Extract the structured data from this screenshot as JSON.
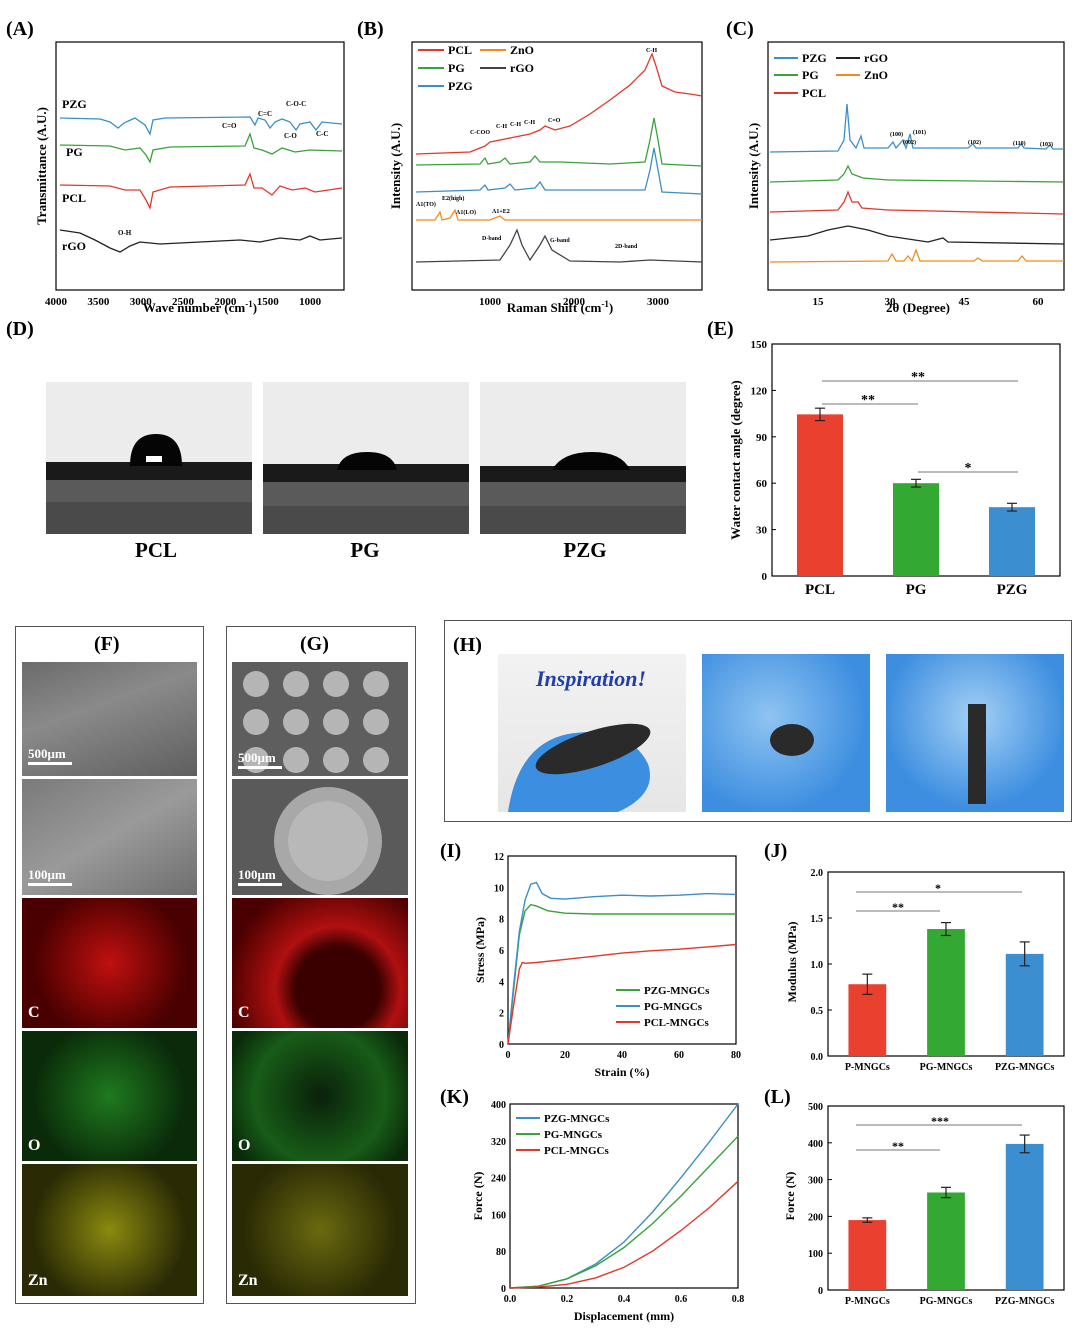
{
  "panels": {
    "A": {
      "label": "(A)",
      "ylabel": "Transmittance (A.U.)",
      "xlabel": "Wave number (cm",
      "xlabel_sup": "-1",
      "xticks": [
        "4000",
        "3500",
        "3000",
        "2500",
        "2000",
        "1500",
        "1000"
      ],
      "series": [
        {
          "name": "PZG",
          "color": "#3a8fc7"
        },
        {
          "name": "PG",
          "color": "#3aa23a"
        },
        {
          "name": "PCL",
          "color": "#e2372a"
        },
        {
          "name": "rGO",
          "color": "#222222"
        }
      ],
      "annotations": [
        "C=O",
        "C=C",
        "C-O-C",
        "C-O",
        "C-C",
        "O-H"
      ]
    },
    "B": {
      "label": "(B)",
      "ylabel": "Intensity (A.U.)",
      "xlabel": "Raman Shift  (cm",
      "xlabel_sup": "-1",
      "xticks": [
        "1000",
        "2000",
        "3000"
      ],
      "legend": [
        {
          "name": "PCL",
          "color": "#e2372a"
        },
        {
          "name": "ZnO",
          "color": "#f28c1e"
        },
        {
          "name": "PG",
          "color": "#3aa23a"
        },
        {
          "name": "rGO",
          "color": "#444444"
        },
        {
          "name": "PZG",
          "color": "#3a8fc7"
        }
      ],
      "annotations": [
        "C-H",
        "C-COO",
        "C-H",
        "C-H",
        "C-H",
        "C=O",
        "A1(TO)",
        "E2(high)",
        "A1(LO)",
        "A1+E2",
        "D-band",
        "G-band",
        "2D-band"
      ]
    },
    "C": {
      "label": "(C)",
      "ylabel": "Intensity (A.U.)",
      "xlabel": "2θ (Degree)",
      "xticks": [
        "15",
        "30",
        "45",
        "60"
      ],
      "legend": [
        {
          "name": "PZG",
          "color": "#3a8fc7"
        },
        {
          "name": "rGO",
          "color": "#222222"
        },
        {
          "name": "PG",
          "color": "#3aa23a"
        },
        {
          "name": "ZnO",
          "color": "#f28c1e"
        },
        {
          "name": "PCL",
          "color": "#e2372a"
        }
      ],
      "annotations": [
        "(100)",
        "(002)",
        "(101)",
        "(102)",
        "(110)",
        "(103)"
      ]
    },
    "D": {
      "label": "(D)",
      "captions": [
        "PCL",
        "PG",
        "PZG"
      ]
    },
    "E": {
      "label": "(E)",
      "ylabel": "Water contact angle (degree)",
      "yticks": [
        "0",
        "30",
        "60",
        "90",
        "120",
        "150"
      ],
      "sig": [
        "**",
        "**",
        "*"
      ]
    },
    "F": {
      "label": "(F)",
      "scales": [
        "500μm",
        "100μm"
      ],
      "elements": [
        "C",
        "O",
        "Zn"
      ]
    },
    "G": {
      "label": "(G)",
      "scales": [
        "500μm",
        "100μm"
      ],
      "elements": [
        "C",
        "O",
        "Zn"
      ]
    },
    "H": {
      "label": "(H)",
      "inspiration": "Inspiration!"
    },
    "I": {
      "label": "(I)",
      "ylabel": "Stress (MPa)",
      "xlabel": "Strain (%)",
      "xticks": [
        "0",
        "20",
        "40",
        "60",
        "80"
      ],
      "yticks": [
        "0",
        "2",
        "4",
        "6",
        "8",
        "10",
        "12"
      ],
      "legend": [
        {
          "name": "PZG-MNGCs",
          "color": "#3aa23a"
        },
        {
          "name": "PG-MNGCs",
          "color": "#3a8fc7"
        },
        {
          "name": "PCL-MNGCs",
          "color": "#e2372a"
        }
      ]
    },
    "J": {
      "label": "(J)",
      "ylabel": "Modulus (MPa)",
      "yticks": [
        "0.0",
        "0.5",
        "1.0",
        "1.5",
        "2.0"
      ],
      "sig": [
        "**",
        "*"
      ]
    },
    "K": {
      "label": "(K)",
      "ylabel": "Force (N)",
      "xlabel": "Displacement (mm)",
      "xticks": [
        "0.0",
        "0.2",
        "0.4",
        "0.6",
        "0.8"
      ],
      "yticks": [
        "0",
        "80",
        "160",
        "240",
        "320",
        "400"
      ],
      "legend": [
        {
          "name": "PZG-MNGCs",
          "color": "#3a8fc7"
        },
        {
          "name": "PG-MNGCs",
          "color": "#3aa23a"
        },
        {
          "name": "PCL-MNGCs",
          "color": "#e2372a"
        }
      ]
    },
    "L": {
      "label": "(L)",
      "ylabel": "Force (N)",
      "yticks": [
        "0",
        "100",
        "200",
        "300",
        "400",
        "500"
      ],
      "sig": [
        "**",
        "***"
      ]
    }
  },
  "chart_data": [
    {
      "id": "E",
      "type": "bar",
      "categories": [
        "PCL",
        "PG",
        "PZG"
      ],
      "values": [
        104.5,
        60,
        44.5
      ],
      "errors": [
        4,
        2.5,
        2.5
      ],
      "colors": [
        "#e9402f",
        "#33a832",
        "#3b8fd0"
      ],
      "ylabel": "Water contact angle (degree)",
      "ylim": [
        0,
        150
      ]
    },
    {
      "id": "J",
      "type": "bar",
      "categories": [
        "P-MNGCs",
        "PG-MNGCs",
        "PZG-MNGCs"
      ],
      "values": [
        0.78,
        1.38,
        1.11
      ],
      "errors": [
        0.11,
        0.07,
        0.13
      ],
      "colors": [
        "#e9402f",
        "#33a832",
        "#3b8fd0"
      ],
      "ylabel": "Modulus (MPa)",
      "ylim": [
        0,
        2.0
      ]
    },
    {
      "id": "L",
      "type": "bar",
      "categories": [
        "P-MNGCs",
        "PG-MNGCs",
        "PZG-MNGCs"
      ],
      "values": [
        190,
        265,
        397
      ],
      "errors": [
        6,
        14,
        24
      ],
      "colors": [
        "#e9402f",
        "#33a832",
        "#3b8fd0"
      ],
      "ylabel": "Force (N)",
      "ylim": [
        0,
        500
      ]
    },
    {
      "id": "I",
      "type": "line",
      "xlabel": "Strain (%)",
      "ylabel": "Stress (MPa)",
      "xlim": [
        0,
        80
      ],
      "ylim": [
        0,
        12
      ],
      "series": [
        {
          "name": "PZG-MNGCs",
          "color": "#3aa23a",
          "x": [
            0,
            2,
            4,
            6,
            8,
            10,
            14,
            20,
            30,
            40,
            50,
            60,
            70,
            80
          ],
          "y": [
            0,
            3.5,
            7,
            8.5,
            8.9,
            8.8,
            8.5,
            8.35,
            8.3,
            8.3,
            8.3,
            8.3,
            8.3,
            8.3
          ]
        },
        {
          "name": "PG-MNGCs",
          "color": "#3a8fc7",
          "x": [
            0,
            2,
            4,
            6,
            8,
            10,
            12,
            15,
            20,
            30,
            40,
            50,
            60,
            70,
            80
          ],
          "y": [
            0,
            3.8,
            7.2,
            9.2,
            10.2,
            10.3,
            9.6,
            9.3,
            9.25,
            9.4,
            9.5,
            9.45,
            9.5,
            9.6,
            9.55
          ]
        },
        {
          "name": "PCL-MNGCs",
          "color": "#e2372a",
          "x": [
            0,
            2,
            4,
            5,
            6,
            10,
            20,
            30,
            40,
            50,
            60,
            70,
            80
          ],
          "y": [
            0,
            2.5,
            4.8,
            5.2,
            5.15,
            5.2,
            5.4,
            5.6,
            5.8,
            5.95,
            6.05,
            6.2,
            6.35
          ]
        }
      ]
    },
    {
      "id": "K",
      "type": "line",
      "xlabel": "Displacement (mm)",
      "ylabel": "Force (N)",
      "xlim": [
        0,
        0.8
      ],
      "ylim": [
        0,
        400
      ],
      "series": [
        {
          "name": "PZG-MNGCs",
          "color": "#3a8fc7",
          "x": [
            0,
            0.1,
            0.2,
            0.3,
            0.4,
            0.5,
            0.6,
            0.7,
            0.8
          ],
          "y": [
            0,
            4,
            20,
            52,
            100,
            165,
            240,
            318,
            400
          ]
        },
        {
          "name": "PG-MNGCs",
          "color": "#3aa23a",
          "x": [
            0,
            0.1,
            0.2,
            0.3,
            0.4,
            0.5,
            0.6,
            0.7,
            0.8
          ],
          "y": [
            0,
            4,
            20,
            48,
            88,
            140,
            200,
            265,
            330
          ]
        },
        {
          "name": "PCL-MNGCs",
          "color": "#e2372a",
          "x": [
            0,
            0.1,
            0.2,
            0.3,
            0.4,
            0.5,
            0.6,
            0.7,
            0.8
          ],
          "y": [
            0,
            2,
            8,
            22,
            45,
            80,
            125,
            175,
            232
          ]
        }
      ]
    }
  ]
}
